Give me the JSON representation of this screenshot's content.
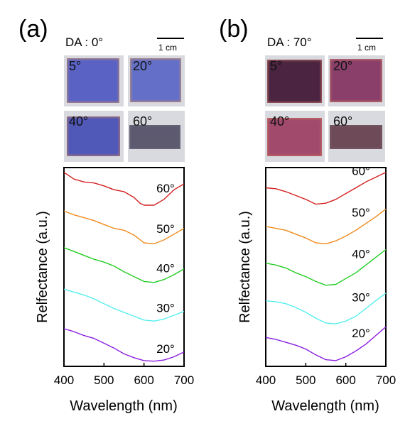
{
  "panels": [
    {
      "label": "(a)",
      "da_label": "DA : 0°",
      "scale_label": "1 cm",
      "photos": [
        {
          "angle": "5°",
          "color": "#5a63c4",
          "edge": "#c08a6a"
        },
        {
          "angle": "20°",
          "color": "#6470c8",
          "edge": "#c9906a"
        },
        {
          "angle": "40°",
          "color": "#5058b8",
          "edge": "#b97a62"
        },
        {
          "angle": "60°",
          "color": "#5d5a70",
          "edge": "#6d6a7e"
        }
      ]
    },
    {
      "label": "(b)",
      "da_label": "DA : 70°",
      "scale_label": "1 cm",
      "photos": [
        {
          "angle": "5°",
          "color": "#4a2440",
          "edge": "#b86a5e"
        },
        {
          "angle": "20°",
          "color": "#8a3f6a",
          "edge": "#c87a6a"
        },
        {
          "angle": "40°",
          "color": "#a24a6c",
          "edge": "#c4705e"
        },
        {
          "angle": "60°",
          "color": "#6e4a58",
          "edge": "#7a5e66"
        }
      ]
    }
  ],
  "chart_data": [
    {
      "type": "line",
      "xlabel": "Wavelength (nm)",
      "ylabel": "Relfectance (a.u.)",
      "xlim": [
        400,
        700
      ],
      "xticks": [
        "400",
        "500",
        "600",
        "700"
      ],
      "ylim": [
        0,
        1
      ],
      "series": [
        {
          "name": "60°",
          "color": "#d42020",
          "x": [
            400,
            425,
            450,
            475,
            500,
            525,
            550,
            575,
            590,
            600,
            625,
            650,
            675,
            700
          ],
          "y": [
            0.99,
            0.955,
            0.94,
            0.935,
            0.92,
            0.9,
            0.89,
            0.86,
            0.83,
            0.82,
            0.82,
            0.85,
            0.9,
            0.93
          ]
        },
        {
          "name": "50°",
          "color": "#ee8a1e",
          "x": [
            400,
            425,
            450,
            475,
            500,
            525,
            550,
            575,
            600,
            625,
            650,
            675,
            700
          ],
          "y": [
            0.79,
            0.77,
            0.755,
            0.74,
            0.72,
            0.7,
            0.69,
            0.665,
            0.625,
            0.62,
            0.64,
            0.67,
            0.7
          ]
        },
        {
          "name": "40°",
          "color": "#22cc22",
          "x": [
            400,
            425,
            450,
            475,
            500,
            525,
            550,
            575,
            600,
            625,
            650,
            675,
            700
          ],
          "y": [
            0.6,
            0.58,
            0.56,
            0.54,
            0.525,
            0.505,
            0.475,
            0.45,
            0.425,
            0.42,
            0.435,
            0.46,
            0.49
          ]
        },
        {
          "name": "30°",
          "color": "#55eeee",
          "x": [
            400,
            425,
            450,
            475,
            500,
            525,
            550,
            575,
            600,
            625,
            650,
            675,
            700
          ],
          "y": [
            0.385,
            0.37,
            0.355,
            0.335,
            0.31,
            0.285,
            0.265,
            0.245,
            0.225,
            0.22,
            0.23,
            0.25,
            0.27
          ]
        },
        {
          "name": "20°",
          "color": "#8a1ee0",
          "x": [
            400,
            425,
            450,
            475,
            500,
            525,
            550,
            575,
            600,
            625,
            650,
            675,
            700
          ],
          "y": [
            0.18,
            0.165,
            0.145,
            0.13,
            0.105,
            0.08,
            0.05,
            0.03,
            0.015,
            0.012,
            0.018,
            0.035,
            0.06
          ]
        }
      ]
    },
    {
      "type": "line",
      "xlabel": "Wavelength (nm)",
      "ylabel": "Relfectance (a.u.)",
      "xlim": [
        400,
        700
      ],
      "xticks": [
        "400",
        "500",
        "600",
        "700"
      ],
      "ylim": [
        0,
        1
      ],
      "series": [
        {
          "name": "60°",
          "color": "#d42020",
          "x": [
            400,
            425,
            450,
            475,
            500,
            525,
            550,
            575,
            600,
            625,
            650,
            675,
            700
          ],
          "y": [
            0.91,
            0.905,
            0.89,
            0.87,
            0.85,
            0.825,
            0.83,
            0.85,
            0.88,
            0.91,
            0.94,
            0.965,
            0.99
          ]
        },
        {
          "name": "50°",
          "color": "#ee8a1e",
          "x": [
            400,
            425,
            450,
            475,
            500,
            525,
            550,
            575,
            600,
            625,
            650,
            675,
            700
          ],
          "y": [
            0.71,
            0.7,
            0.69,
            0.67,
            0.65,
            0.625,
            0.62,
            0.635,
            0.66,
            0.69,
            0.725,
            0.76,
            0.8
          ]
        },
        {
          "name": "40°",
          "color": "#22cc22",
          "x": [
            400,
            425,
            450,
            475,
            500,
            525,
            550,
            575,
            600,
            625,
            650,
            675,
            700
          ],
          "y": [
            0.52,
            0.51,
            0.495,
            0.47,
            0.45,
            0.425,
            0.405,
            0.41,
            0.44,
            0.47,
            0.51,
            0.55,
            0.59
          ]
        },
        {
          "name": "30°",
          "color": "#55eeee",
          "x": [
            400,
            425,
            450,
            475,
            500,
            525,
            550,
            575,
            600,
            625,
            650,
            675,
            700
          ],
          "y": [
            0.325,
            0.32,
            0.31,
            0.29,
            0.265,
            0.235,
            0.21,
            0.205,
            0.22,
            0.245,
            0.285,
            0.325,
            0.365
          ]
        },
        {
          "name": "20°",
          "color": "#8a1ee0",
          "x": [
            400,
            425,
            450,
            475,
            500,
            525,
            550,
            575,
            600,
            625,
            650,
            675,
            700
          ],
          "y": [
            0.135,
            0.125,
            0.11,
            0.095,
            0.075,
            0.045,
            0.02,
            0.015,
            0.035,
            0.065,
            0.1,
            0.145,
            0.19
          ]
        }
      ]
    }
  ]
}
